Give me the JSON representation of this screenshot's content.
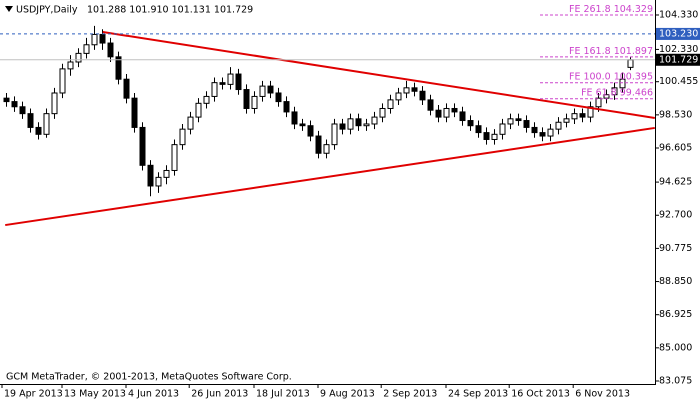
{
  "chart_data": {
    "type": "candlestick",
    "symbol": "USDJPY,Daily",
    "header_ohlc": "101.288 101.910 101.131 101.729",
    "footer": "GCM MetaTrader, © 2001-2013, MetaQuotes Software Corp.",
    "candles": [
      [
        99.5,
        99.8,
        99.0,
        99.3
      ],
      [
        99.3,
        99.6,
        98.7,
        99.0
      ],
      [
        99.0,
        99.3,
        98.3,
        98.6
      ],
      [
        98.6,
        98.9,
        97.5,
        97.8
      ],
      [
        97.8,
        98.1,
        97.1,
        97.4
      ],
      [
        97.4,
        98.9,
        97.2,
        98.6
      ],
      [
        98.6,
        100.1,
        98.3,
        99.8
      ],
      [
        99.8,
        101.5,
        99.5,
        101.2
      ],
      [
        101.2,
        102.0,
        100.8,
        101.6
      ],
      [
        101.6,
        102.4,
        101.3,
        102.1
      ],
      [
        102.1,
        103.0,
        101.8,
        102.6
      ],
      [
        102.6,
        103.7,
        102.3,
        103.2
      ],
      [
        103.2,
        103.5,
        102.3,
        102.7
      ],
      [
        102.7,
        103.0,
        101.6,
        101.9
      ],
      [
        101.9,
        102.2,
        100.3,
        100.6
      ],
      [
        100.6,
        100.9,
        99.2,
        99.5
      ],
      [
        99.5,
        99.8,
        97.5,
        97.8
      ],
      [
        97.8,
        98.1,
        95.3,
        95.6
      ],
      [
        95.6,
        95.9,
        93.8,
        94.4
      ],
      [
        94.4,
        95.2,
        94.0,
        94.9
      ],
      [
        94.9,
        95.6,
        94.5,
        95.3
      ],
      [
        95.3,
        97.1,
        95.0,
        96.8
      ],
      [
        96.8,
        98.0,
        96.5,
        97.7
      ],
      [
        97.7,
        98.7,
        97.4,
        98.4
      ],
      [
        98.4,
        99.5,
        98.1,
        99.2
      ],
      [
        99.2,
        99.9,
        98.9,
        99.6
      ],
      [
        99.6,
        100.7,
        99.3,
        100.4
      ],
      [
        100.4,
        100.7,
        100.0,
        100.3
      ],
      [
        100.3,
        101.3,
        100.0,
        100.9
      ],
      [
        100.9,
        101.2,
        99.7,
        100.0
      ],
      [
        100.0,
        100.3,
        98.6,
        98.9
      ],
      [
        98.9,
        99.9,
        98.6,
        99.6
      ],
      [
        99.6,
        100.5,
        99.3,
        100.2
      ],
      [
        100.2,
        100.5,
        99.5,
        99.8
      ],
      [
        99.8,
        100.1,
        99.0,
        99.3
      ],
      [
        99.3,
        99.6,
        98.4,
        98.7
      ],
      [
        98.7,
        99.0,
        97.7,
        98.0
      ],
      [
        98.0,
        98.3,
        97.6,
        97.9
      ],
      [
        97.9,
        98.2,
        97.0,
        97.3
      ],
      [
        97.3,
        97.6,
        96.0,
        96.3
      ],
      [
        96.3,
        97.1,
        96.0,
        96.8
      ],
      [
        96.8,
        98.3,
        96.5,
        98.0
      ],
      [
        98.0,
        98.3,
        97.4,
        97.7
      ],
      [
        97.7,
        98.6,
        97.4,
        98.3
      ],
      [
        98.3,
        98.6,
        97.6,
        97.9
      ],
      [
        97.9,
        98.3,
        97.6,
        98.0
      ],
      [
        98.0,
        98.7,
        97.7,
        98.4
      ],
      [
        98.4,
        99.2,
        98.1,
        98.9
      ],
      [
        98.9,
        99.7,
        98.6,
        99.4
      ],
      [
        99.4,
        100.1,
        99.1,
        99.8
      ],
      [
        99.8,
        100.5,
        99.5,
        100.1
      ],
      [
        100.1,
        100.4,
        99.6,
        99.9
      ],
      [
        99.9,
        100.2,
        99.1,
        99.4
      ],
      [
        99.4,
        99.7,
        98.5,
        98.8
      ],
      [
        98.8,
        99.1,
        98.1,
        98.4
      ],
      [
        98.4,
        99.2,
        98.1,
        98.9
      ],
      [
        98.9,
        99.2,
        98.4,
        98.7
      ],
      [
        98.7,
        99.0,
        97.9,
        98.2
      ],
      [
        98.2,
        98.5,
        97.6,
        97.9
      ],
      [
        97.9,
        98.2,
        97.2,
        97.5
      ],
      [
        97.5,
        97.8,
        96.8,
        97.1
      ],
      [
        97.1,
        97.7,
        96.8,
        97.4
      ],
      [
        97.4,
        98.3,
        97.1,
        98.0
      ],
      [
        98.0,
        98.6,
        97.7,
        98.3
      ],
      [
        98.3,
        98.6,
        97.9,
        98.2
      ],
      [
        98.2,
        98.5,
        97.5,
        97.8
      ],
      [
        97.8,
        98.1,
        97.2,
        97.5
      ],
      [
        97.5,
        97.8,
        97.0,
        97.3
      ],
      [
        97.3,
        98.0,
        97.0,
        97.7
      ],
      [
        97.7,
        98.4,
        97.4,
        98.1
      ],
      [
        98.1,
        98.6,
        97.8,
        98.3
      ],
      [
        98.3,
        98.9,
        98.0,
        98.6
      ],
      [
        98.6,
        98.9,
        98.1,
        98.4
      ],
      [
        98.4,
        99.3,
        98.1,
        99.0
      ],
      [
        99.0,
        99.8,
        98.7,
        99.5
      ],
      [
        99.5,
        100.0,
        99.2,
        99.7
      ],
      [
        99.7,
        100.4,
        99.4,
        100.1
      ],
      [
        100.1,
        101.0,
        99.8,
        100.6
      ],
      [
        101.288,
        101.91,
        101.131,
        101.729
      ]
    ],
    "ylim": [
      82.9,
      105.2
    ],
    "yticks": [
      {
        "value": 104.33,
        "label": "104.330"
      },
      {
        "value": 102.33,
        "label": "102.330"
      },
      {
        "value": 100.455,
        "label": "100.455"
      },
      {
        "value": 98.53,
        "label": "98.530"
      },
      {
        "value": 96.605,
        "label": "96.605"
      },
      {
        "value": 94.625,
        "label": "94.625"
      },
      {
        "value": 92.7,
        "label": "92.700"
      },
      {
        "value": 90.775,
        "label": "90.775"
      },
      {
        "value": 88.85,
        "label": "88.850"
      },
      {
        "value": 86.925,
        "label": "86.925"
      },
      {
        "value": 85,
        "label": "85.000"
      },
      {
        "value": 83.075,
        "label": "83.075"
      }
    ],
    "xticks": [
      {
        "value": 0,
        "label": "19 Apr 2013"
      },
      {
        "value": 7.5,
        "label": "13 May 2013"
      },
      {
        "value": 15.5,
        "label": "4 Jun 2013"
      },
      {
        "value": 23.4,
        "label": "26 Jun 2013"
      },
      {
        "value": 31.5,
        "label": "18 Jul 2013"
      },
      {
        "value": 39.5,
        "label": "9 Aug 2013"
      },
      {
        "value": 47.4,
        "label": "2 Sep 2013"
      },
      {
        "value": 55.5,
        "label": "24 Sep 2013"
      },
      {
        "value": 63.4,
        "label": "16 Oct 2013"
      },
      {
        "value": 71.4,
        "label": "6 Nov 2013"
      }
    ],
    "price_level": {
      "value": 103.23,
      "label": "103.230",
      "color": "#2f5fbf"
    },
    "fib_levels": [
      {
        "name": "FE 261.8",
        "value": 104.329
      },
      {
        "name": "FE 161.8",
        "value": 101.897
      },
      {
        "name": "FE 100.0",
        "value": 100.395
      },
      {
        "name": "FE 61.8",
        "value": 99.466
      }
    ],
    "fib_color": "#cc44cc",
    "trendlines": [
      {
        "x": [
          12.1,
          81.1
        ],
        "y": [
          103.34,
          98.35
        ]
      },
      {
        "x": [
          -0.1,
          81.1
        ],
        "y": [
          92.13,
          97.77
        ]
      }
    ],
    "trend_color": "#e00000"
  }
}
